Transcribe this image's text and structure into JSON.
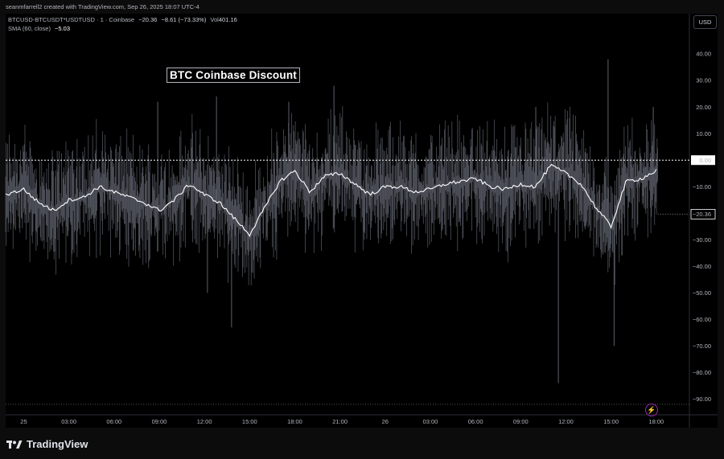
{
  "header": {
    "credit": "seanmfarrell2 created with TradingView.com, Sep 26, 2025 18:07 UTC-4",
    "symbol": "BTCUSD-BTCUSDT*USDTUSD · 1 · Coinbase",
    "last": "−20.36",
    "change": "−8.61 (−73.33%)",
    "vol_label": "Vol",
    "vol_value": "401.16",
    "sma_label": "SMA (60, close)",
    "sma_value": "−5.03",
    "currency": "USD"
  },
  "annotation": "BTC Coinbase Discount",
  "brand": {
    "name": "TradingView",
    "logo_icon": "tradingview-logo-icon"
  },
  "icons": {
    "flash": "flash-icon"
  },
  "colors": {
    "background": "#000000",
    "spread": "#5d606b",
    "sma": "#ffffff",
    "zero_line": "#ffffff",
    "last_label_bg": "#000000"
  },
  "chart_data": {
    "type": "line",
    "y_ticks": [
      "40.00",
      "30.00",
      "20.00",
      "10.00",
      "0.00",
      "−10.00",
      "−20.36",
      "−30.00",
      "−40.00",
      "−50.00",
      "−60.00",
      "−70.00",
      "−80.00",
      "−90.00"
    ],
    "y_tick_values": [
      40,
      30,
      20,
      10,
      0,
      -10,
      -20.36,
      -30,
      -40,
      -50,
      -60,
      -70,
      -80,
      -90
    ],
    "ylim": [
      -92,
      47
    ],
    "x_ticks": [
      "25",
      "03:00",
      "06:00",
      "09:00",
      "12:00",
      "15:00",
      "18:00",
      "21:00",
      "26",
      "03:00",
      "06:00",
      "09:00",
      "12:00",
      "15:00",
      "18:00"
    ],
    "x_tick_hours": [
      0,
      3,
      6,
      9,
      12,
      15,
      18,
      21,
      24,
      27,
      30,
      33,
      36,
      39,
      42
    ],
    "xlim_hours": [
      -1.2,
      44.2
    ],
    "last_x_hour": 42.1,
    "reference_line": 0,
    "last_value": -20.36,
    "series": [
      {
        "name": "SMA (60, close)",
        "x_hours": [
          -1.2,
          0,
          1,
          2,
          3,
          4,
          5,
          6,
          7,
          8,
          9,
          10,
          11,
          12,
          13,
          14,
          15,
          16,
          17,
          18,
          19,
          20,
          21,
          22,
          23,
          24,
          25,
          26,
          27,
          28,
          29,
          30,
          31,
          32,
          33,
          34,
          35,
          36,
          37,
          38,
          39,
          40,
          41,
          42
        ],
        "values": [
          -13,
          -11,
          -16,
          -19,
          -15,
          -14,
          -10,
          -12,
          -14,
          -16,
          -19,
          -15,
          -9,
          -13,
          -16,
          -22,
          -28,
          -18,
          -8,
          -4,
          -12,
          -6,
          -5,
          -9,
          -13,
          -10,
          -10,
          -12,
          -11,
          -9,
          -8,
          -7,
          -10,
          -11,
          -9,
          -10,
          -2,
          -5,
          -9,
          -18,
          -25,
          -8,
          -7,
          -4
        ]
      },
      {
        "name": "BTCUSD-BTCUSDT*USDTUSD",
        "spread_note": "high-frequency 1-minute spread oscillating around the SMA",
        "amplitude_typ": 12,
        "spikes": [
          {
            "x_hour": 8.9,
            "value": 22
          },
          {
            "x_hour": 12.8,
            "value": 24
          },
          {
            "x_hour": 13.8,
            "value": -63
          },
          {
            "x_hour": 12.2,
            "value": -50
          },
          {
            "x_hour": 17.6,
            "value": 22
          },
          {
            "x_hour": 20.6,
            "value": 28
          },
          {
            "x_hour": 35.5,
            "value": -84
          },
          {
            "x_hour": 34.0,
            "value": 20
          },
          {
            "x_hour": 38.8,
            "value": 38
          },
          {
            "x_hour": 39.2,
            "value": -70
          },
          {
            "x_hour": 41.8,
            "value": 20
          }
        ]
      }
    ]
  }
}
